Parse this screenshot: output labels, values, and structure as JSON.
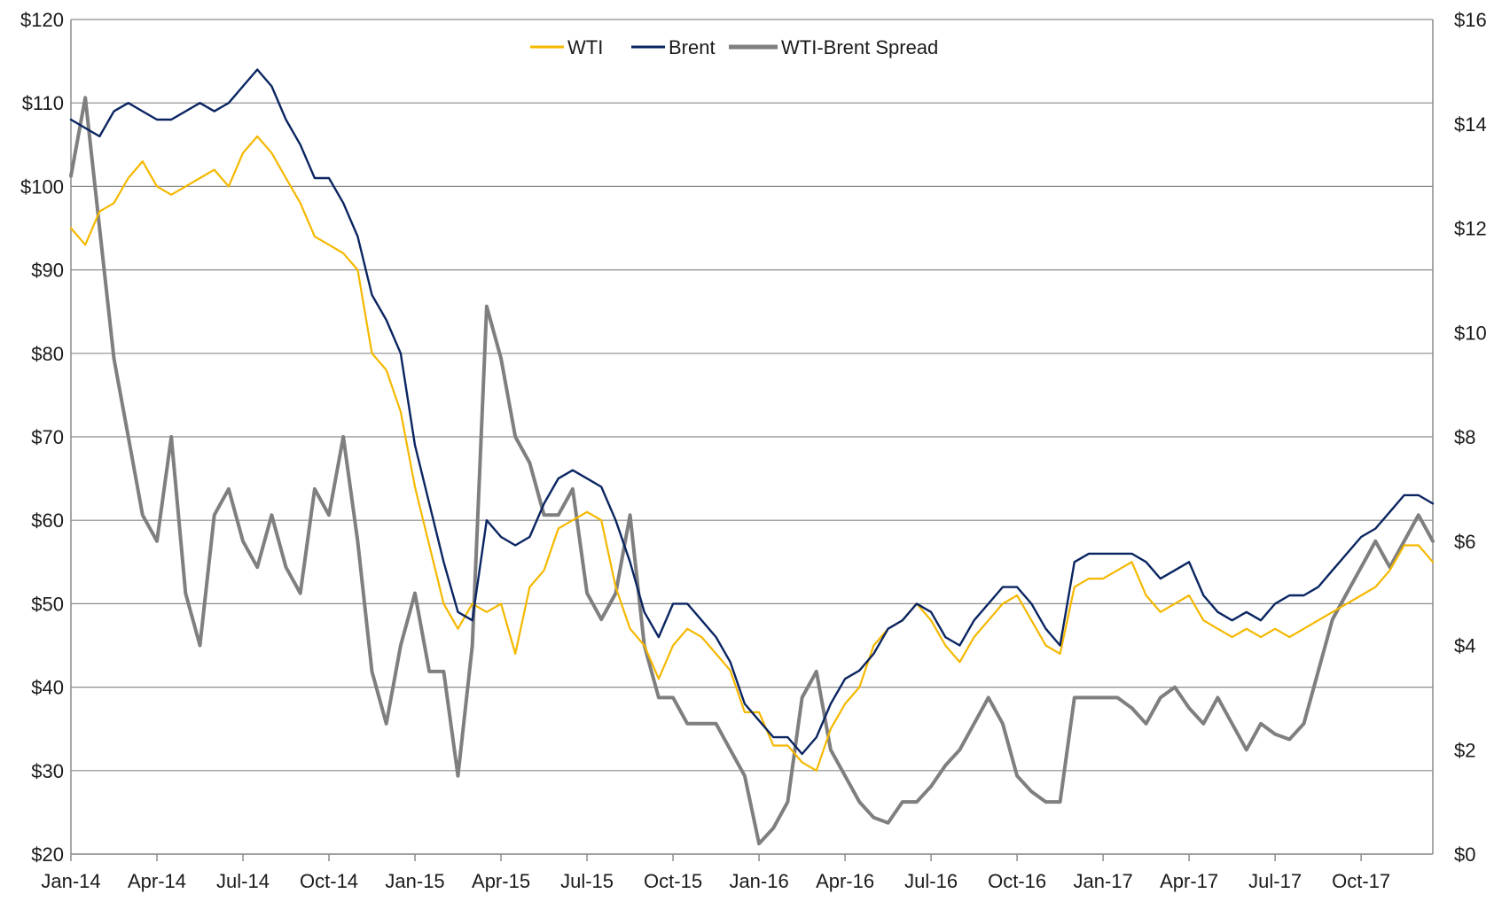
{
  "chart_data": {
    "type": "line",
    "title": "",
    "xlabel": "",
    "ylabel": "",
    "x_ticks": [
      "Jan-14",
      "Apr-14",
      "Jul-14",
      "Oct-14",
      "Jan-15",
      "Apr-15",
      "Jul-15",
      "Oct-15",
      "Jan-16",
      "Apr-16",
      "Jul-16",
      "Oct-16",
      "Jan-17",
      "Apr-17",
      "Jul-17",
      "Oct-17"
    ],
    "x_range_months": [
      0,
      47.5
    ],
    "y_left": {
      "ticks": [
        "$20",
        "$30",
        "$40",
        "$50",
        "$60",
        "$70",
        "$80",
        "$90",
        "$100",
        "$110",
        "$120"
      ],
      "range": [
        20,
        120
      ]
    },
    "y_right": {
      "ticks": [
        "$0",
        "$2",
        "$4",
        "$6",
        "$8",
        "$10",
        "$12",
        "$14",
        "$16"
      ],
      "range": [
        0,
        16
      ]
    },
    "grid": "horizontal",
    "legend_position": "top-center",
    "series": [
      {
        "name": "WTI",
        "axis": "left",
        "color": "#f5b800",
        "x": [
          0,
          0.5,
          1,
          1.5,
          2,
          2.5,
          3,
          3.5,
          4,
          4.5,
          5,
          5.5,
          6,
          6.5,
          7,
          7.5,
          8,
          8.5,
          9,
          9.5,
          10,
          10.5,
          11,
          11.5,
          12,
          12.5,
          13,
          13.5,
          14,
          14.5,
          15,
          15.5,
          16,
          16.5,
          17,
          17.5,
          18,
          18.5,
          19,
          19.5,
          20,
          20.5,
          21,
          21.5,
          22,
          22.5,
          23,
          23.5,
          24,
          24.5,
          25,
          25.5,
          26,
          26.5,
          27,
          27.5,
          28,
          28.5,
          29,
          29.5,
          30,
          30.5,
          31,
          31.5,
          32,
          32.5,
          33,
          33.5,
          34,
          34.5,
          35,
          35.5,
          36,
          36.5,
          37,
          37.5,
          38,
          38.5,
          39,
          39.5,
          40,
          40.5,
          41,
          41.5,
          42,
          42.5,
          43,
          43.5,
          44,
          44.5,
          45,
          45.5,
          46,
          46.5,
          47,
          47.5
        ],
        "values": [
          95,
          93,
          97,
          98,
          101,
          103,
          100,
          99,
          100,
          101,
          102,
          100,
          104,
          106,
          104,
          101,
          98,
          94,
          93,
          92,
          90,
          80,
          78,
          73,
          64,
          57,
          50,
          47,
          50,
          49,
          50,
          44,
          52,
          54,
          59,
          60,
          61,
          60,
          52,
          47,
          45,
          41,
          45,
          47,
          46,
          44,
          42,
          37,
          37,
          33,
          33,
          31,
          30,
          35,
          38,
          40,
          45,
          47,
          48,
          50,
          48,
          45,
          43,
          46,
          48,
          50,
          51,
          48,
          45,
          44,
          52,
          53,
          53,
          54,
          55,
          51,
          49,
          50,
          51,
          48,
          47,
          46,
          47,
          46,
          47,
          46,
          47,
          48,
          49,
          50,
          51,
          52,
          54,
          57,
          57,
          55
        ]
      },
      {
        "name": "Brent",
        "axis": "left",
        "color": "#0a2561",
        "x": [
          0,
          0.5,
          1,
          1.5,
          2,
          2.5,
          3,
          3.5,
          4,
          4.5,
          5,
          5.5,
          6,
          6.5,
          7,
          7.5,
          8,
          8.5,
          9,
          9.5,
          10,
          10.5,
          11,
          11.5,
          12,
          12.5,
          13,
          13.5,
          14,
          14.5,
          15,
          15.5,
          16,
          16.5,
          17,
          17.5,
          18,
          18.5,
          19,
          19.5,
          20,
          20.5,
          21,
          21.5,
          22,
          22.5,
          23,
          23.5,
          24,
          24.5,
          25,
          25.5,
          26,
          26.5,
          27,
          27.5,
          28,
          28.5,
          29,
          29.5,
          30,
          30.5,
          31,
          31.5,
          32,
          32.5,
          33,
          33.5,
          34,
          34.5,
          35,
          35.5,
          36,
          36.5,
          37,
          37.5,
          38,
          38.5,
          39,
          39.5,
          40,
          40.5,
          41,
          41.5,
          42,
          42.5,
          43,
          43.5,
          44,
          44.5,
          45,
          45.5,
          46,
          46.5,
          47,
          47.5
        ],
        "values": [
          108,
          107,
          106,
          109,
          110,
          109,
          108,
          108,
          109,
          110,
          109,
          110,
          112,
          114,
          112,
          108,
          105,
          101,
          101,
          98,
          94,
          87,
          84,
          80,
          69,
          62,
          55,
          49,
          48,
          60,
          58,
          57,
          58,
          62,
          65,
          66,
          65,
          64,
          60,
          55,
          49,
          46,
          50,
          50,
          48,
          46,
          43,
          38,
          36,
          34,
          34,
          32,
          34,
          38,
          41,
          42,
          44,
          47,
          48,
          50,
          49,
          46,
          45,
          48,
          50,
          52,
          52,
          50,
          47,
          45,
          55,
          56,
          56,
          56,
          56,
          55,
          53,
          54,
          55,
          51,
          49,
          48,
          49,
          48,
          50,
          51,
          51,
          52,
          54,
          56,
          58,
          59,
          61,
          63,
          63,
          62
        ]
      },
      {
        "name": "WTI-Brent Spread",
        "axis": "right",
        "color": "#7f7f7f",
        "x": [
          0,
          0.5,
          1,
          1.5,
          2,
          2.5,
          3,
          3.5,
          4,
          4.5,
          5,
          5.5,
          6,
          6.5,
          7,
          7.5,
          8,
          8.5,
          9,
          9.5,
          10,
          10.5,
          11,
          11.5,
          12,
          12.5,
          13,
          13.5,
          14,
          14.5,
          15,
          15.5,
          16,
          16.5,
          17,
          17.5,
          18,
          18.5,
          19,
          19.5,
          20,
          20.5,
          21,
          21.5,
          22,
          22.5,
          23,
          23.5,
          24,
          24.5,
          25,
          25.5,
          26,
          26.5,
          27,
          27.5,
          28,
          28.5,
          29,
          29.5,
          30,
          30.5,
          31,
          31.5,
          32,
          32.5,
          33,
          33.5,
          34,
          34.5,
          35,
          35.5,
          36,
          36.5,
          37,
          37.5,
          38,
          38.5,
          39,
          39.5,
          40,
          40.5,
          41,
          41.5,
          42,
          42.5,
          43,
          43.5,
          44,
          44.5,
          45,
          45.5,
          46,
          46.5,
          47,
          47.5
        ],
        "values": [
          13,
          14.5,
          12,
          9.5,
          8,
          6.5,
          6,
          8,
          5,
          4,
          6.5,
          7,
          6,
          5.5,
          6.5,
          5.5,
          5,
          7,
          6.5,
          8,
          6,
          3.5,
          2.5,
          4,
          5,
          3.5,
          3.5,
          1.5,
          4,
          10.5,
          9.5,
          8,
          7.5,
          6.5,
          6.5,
          7,
          5,
          4.5,
          5,
          6.5,
          4,
          3,
          3,
          2.5,
          2.5,
          2.5,
          2,
          1.5,
          0.2,
          0.5,
          1,
          3,
          3.5,
          2,
          1.5,
          1,
          0.7,
          0.6,
          1,
          1,
          1.3,
          1.7,
          2,
          2.5,
          3,
          2.5,
          1.5,
          1.2,
          1,
          1,
          3,
          3,
          3,
          3,
          2.8,
          2.5,
          3,
          3.2,
          2.8,
          2.5,
          3,
          2.5,
          2,
          2.5,
          2.3,
          2.2,
          2.5,
          3.5,
          4.5,
          5,
          5.5,
          6,
          5.5,
          6,
          6.5,
          6
        ]
      }
    ]
  }
}
